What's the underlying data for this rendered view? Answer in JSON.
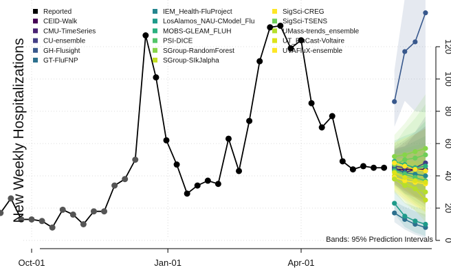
{
  "chart_data": {
    "type": "line",
    "title": "",
    "xlabel": "",
    "ylabel": "New Weekly Hospitalizations",
    "band_note": "Bands: 95% Prediction Intervals",
    "x_ticks": [
      "Oct-01",
      "Jan-01",
      "Apr-01"
    ],
    "y_ticks": [
      "0",
      "20",
      "40",
      "60",
      "80",
      "100",
      "120"
    ],
    "ylim": [
      0,
      140
    ],
    "grid": true,
    "legend_position": "top-left",
    "reported": {
      "name": "Reported",
      "color": "#000000",
      "x": [
        "2022-09-10",
        "2022-09-17",
        "2022-09-24",
        "2022-10-01",
        "2022-10-08",
        "2022-10-15",
        "2022-10-22",
        "2022-10-29",
        "2022-11-05",
        "2022-11-12",
        "2022-11-19",
        "2022-11-26",
        "2022-12-03",
        "2022-12-10",
        "2022-12-17",
        "2022-12-24",
        "2022-12-31",
        "2023-01-07",
        "2023-01-14",
        "2023-01-21",
        "2023-01-28",
        "2023-02-04",
        "2023-02-11",
        "2023-02-18",
        "2023-02-25",
        "2023-03-04",
        "2023-03-11",
        "2023-03-18",
        "2023-03-25",
        "2023-04-01",
        "2023-04-08",
        "2023-04-15",
        "2023-04-22",
        "2023-04-29",
        "2023-05-06",
        "2023-05-13",
        "2023-05-20",
        "2023-05-27"
      ],
      "values": [
        17,
        26,
        13,
        13,
        12,
        8,
        19,
        16,
        10,
        18,
        18,
        34,
        38,
        50,
        127,
        101,
        62,
        47,
        29,
        34,
        37,
        35,
        63,
        43,
        74,
        111,
        132,
        133,
        119,
        124,
        85,
        70,
        77,
        49,
        44,
        46,
        45,
        45
      ]
    },
    "forecast_x": [
      "2023-06-03",
      "2023-06-10",
      "2023-06-17",
      "2023-06-24"
    ],
    "series": [
      {
        "name": "CEID-Walk",
        "color": "#440154",
        "values": [
          44,
          44,
          44,
          44
        ]
      },
      {
        "name": "CMU-TimeSeries",
        "color": "#482173",
        "values": [
          45,
          42,
          44,
          43
        ]
      },
      {
        "name": "CU-ensemble",
        "color": "#433e85",
        "values": [
          46,
          45,
          45,
          48
        ]
      },
      {
        "name": "GH-Flusight",
        "color": "#38588c",
        "values": [
          86,
          117,
          123,
          141
        ]
      },
      {
        "name": "GT-FluFNP",
        "color": "#2d708e",
        "values": [
          17,
          13,
          10,
          8
        ]
      },
      {
        "name": "IEM_Health-FluProject",
        "color": "#25858e",
        "values": [
          44,
          42,
          41,
          40
        ]
      },
      {
        "name": "LosAlamos_NAU-CModel_Flu",
        "color": "#1e9b8a",
        "values": [
          23,
          15,
          12,
          10
        ]
      },
      {
        "name": "MOBS-GLEAM_FLUH",
        "color": "#2ab07f",
        "values": [
          49,
          47,
          45,
          46
        ]
      },
      {
        "name": "PSI-DICE",
        "color": "#52c569",
        "values": [
          43,
          41,
          39,
          37
        ]
      },
      {
        "name": "SGroup-RandomForest",
        "color": "#86d549",
        "values": [
          52,
          53,
          55,
          57
        ]
      },
      {
        "name": "SGroup-SIkJalpha",
        "color": "#c2df23",
        "values": [
          40,
          36,
          32,
          25
        ]
      },
      {
        "name": "SigSci-CREG",
        "color": "#fde725",
        "values": [
          39,
          37,
          36,
          35
        ]
      },
      {
        "name": "SigSci-TSENS",
        "color": "#6ece58",
        "values": [
          47,
          50,
          51,
          53
        ]
      },
      {
        "name": "UMass-trends_ensemble",
        "color": "#b5de2b",
        "values": [
          38,
          34,
          32,
          30
        ]
      },
      {
        "name": "UT_FluCast-Voltaire",
        "color": "#dde318",
        "values": [
          42,
          39,
          37,
          36
        ]
      },
      {
        "name": "UVAFluX-ensemble",
        "color": "#fde725",
        "values": [
          48,
          46,
          44,
          43
        ]
      }
    ]
  }
}
